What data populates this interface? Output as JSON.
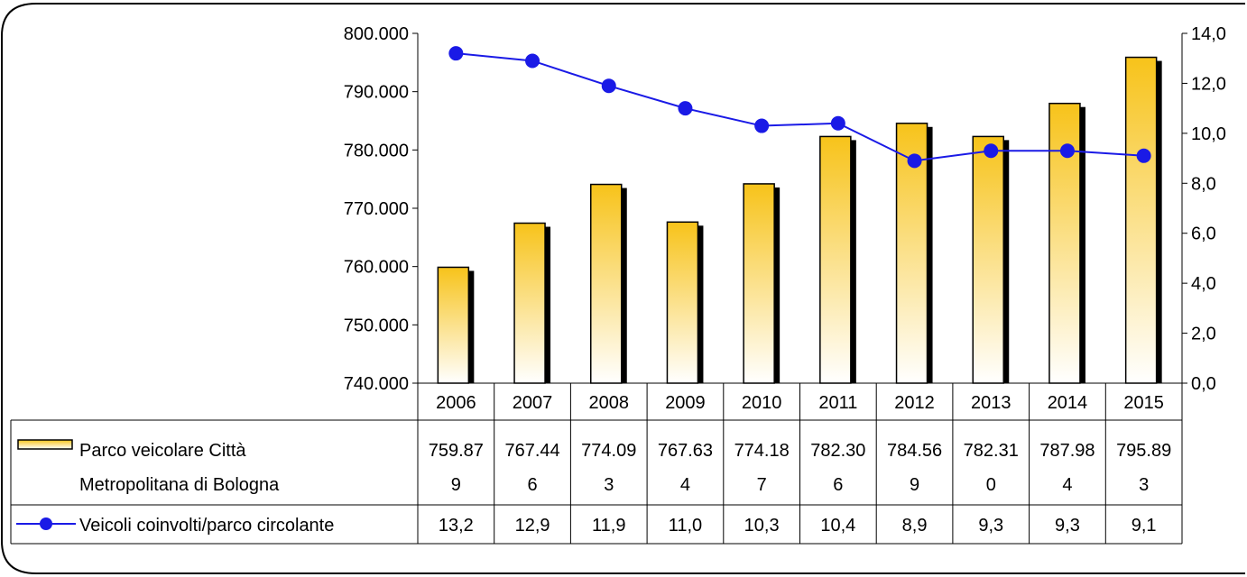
{
  "chart_data": {
    "type": "bar",
    "categories": [
      "2006",
      "2007",
      "2008",
      "2009",
      "2010",
      "2011",
      "2012",
      "2013",
      "2014",
      "2015"
    ],
    "left_axis": {
      "ylim": [
        740000,
        800000
      ],
      "ticks": [
        "740.000",
        "750.000",
        "760.000",
        "770.000",
        "780.000",
        "790.000",
        "800.000"
      ]
    },
    "right_axis": {
      "ylim": [
        0,
        14
      ],
      "ticks": [
        "0,0",
        "2,0",
        "4,0",
        "6,0",
        "8,0",
        "10,0",
        "12,0",
        "14,0"
      ]
    },
    "series": [
      {
        "name_lines": [
          "Parco veicolare Città",
          "Metropolitana di Bologna"
        ],
        "kind": "bar",
        "axis": "left",
        "values": [
          759879,
          767446,
          774093,
          767634,
          774187,
          782306,
          784569,
          782310,
          787984,
          795893
        ],
        "table_lines": [
          [
            "759.87",
            "9"
          ],
          [
            "767.44",
            "6"
          ],
          [
            "774.09",
            "3"
          ],
          [
            "767.63",
            "4"
          ],
          [
            "774.18",
            "7"
          ],
          [
            "782.30",
            "6"
          ],
          [
            "784.56",
            "9"
          ],
          [
            "782.31",
            "0"
          ],
          [
            "787.98",
            "4"
          ],
          [
            "795.89",
            "3"
          ]
        ],
        "color_top": "#f7c31a",
        "color_bottom": "#ffffff",
        "shadow_color": "#000000"
      },
      {
        "name": "Veicoli coinvolti/parco circolante",
        "kind": "line",
        "axis": "right",
        "values": [
          13.2,
          12.9,
          11.9,
          11.0,
          10.3,
          10.4,
          8.9,
          9.3,
          9.3,
          9.1
        ],
        "table_labels": [
          "13,2",
          "12,9",
          "11,9",
          "11,0",
          "10,3",
          "10,4",
          "8,9",
          "9,3",
          "9,3",
          "9,1"
        ],
        "color": "#1a1ae6"
      }
    ],
    "legend_placement": "data-table",
    "grid": false
  }
}
